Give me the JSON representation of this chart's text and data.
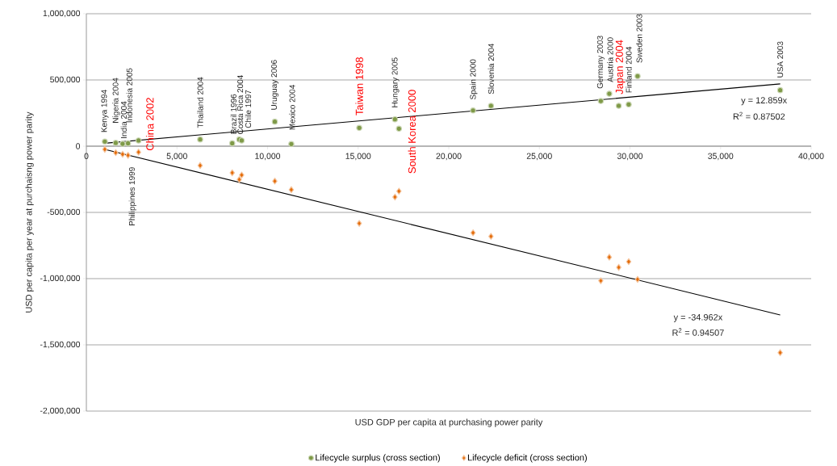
{
  "chart_data": {
    "type": "scatter",
    "xlabel": "USD GDP per capita at purchasing power parity",
    "ylabel": "USD per capita per year at purchaisng power parity",
    "xlim": [
      0,
      40000
    ],
    "xticks": [
      0,
      {
        "value": 5000,
        "label": "5,000"
      },
      {
        "value": 10000,
        "label": "10,000"
      },
      {
        "value": 15000,
        "label": "15,000"
      },
      {
        "value": 20000,
        "label": "20,000"
      },
      {
        "value": 25000,
        "label": "25,000"
      },
      {
        "value": 30000,
        "label": "30,000"
      },
      {
        "value": 35000,
        "label": "35,000"
      },
      {
        "value": 40000,
        "label": "40,000"
      }
    ],
    "ylim": [
      -2000000,
      1000000
    ],
    "yticks": [
      {
        "value": -2000000,
        "label": "-2,000,000"
      },
      {
        "value": -1500000,
        "label": "-1,500,000"
      },
      {
        "value": -1000000,
        "label": "-1,000,000"
      },
      {
        "value": -500000,
        "label": "-500,000"
      },
      0,
      {
        "value": 500000,
        "label": "500,000"
      },
      {
        "value": 1000000,
        "label": "1,000,000"
      }
    ],
    "grid": "y",
    "legend": "bottom",
    "series": [
      {
        "name": "Lifecycle surplus (cross section)",
        "color": "#7f9a48",
        "marker": "circle",
        "x": [
          1020,
          1620,
          2000,
          2280,
          2300,
          2880,
          6280,
          8050,
          8440,
          8570,
          10400,
          11310,
          15060,
          17030,
          17250,
          21340,
          22330,
          28390,
          28860,
          29380,
          29930,
          30420,
          38290
        ],
        "values": [
          35000,
          25000,
          18000,
          null,
          22000,
          43000,
          51000,
          22000,
          51000,
          43000,
          185000,
          16000,
          138000,
          203000,
          132000,
          270000,
          305000,
          341000,
          396000,
          305000,
          315000,
          529000,
          423000
        ]
      },
      {
        "name": "Lifecycle deficit (cross section)",
        "color": "#e46c0a",
        "marker": "diamond",
        "x": [
          1020,
          1620,
          2000,
          2280,
          2300,
          2880,
          6280,
          8050,
          8440,
          8570,
          10400,
          11310,
          15060,
          17030,
          17250,
          21340,
          22330,
          28390,
          28860,
          29380,
          29930,
          30420,
          38290
        ],
        "values": [
          -24000,
          -49000,
          -61000,
          null,
          -69000,
          -45000,
          -146000,
          -201000,
          -252000,
          -218000,
          -264000,
          -329000,
          -583000,
          -384000,
          -340000,
          -654000,
          -681000,
          -1016000,
          -838000,
          -915000,
          -872000,
          -1006000,
          -1559000
        ]
      },
      {
        "type": "line",
        "color": "#000000",
        "marker": "none",
        "x": [
          1020,
          38290
        ],
        "values": [
          22000,
          470000
        ]
      },
      {
        "type": "line",
        "color": "#000000",
        "marker": "none",
        "x": [
          1020,
          38290
        ],
        "values": [
          -24000,
          -1274000
        ]
      }
    ],
    "annotations": [
      {
        "text": "Kenya 1994",
        "x": 1020,
        "y": 35000
      },
      {
        "text": "Nigeria 2004",
        "x": 1620,
        "y": 25000
      },
      {
        "text": "India 2004",
        "x": 2000,
        "y": 18000
      },
      {
        "text": "Indonesia 2005",
        "x": 2280,
        "y": 22000
      },
      {
        "text": "China 2002",
        "x": 2880,
        "y": 43000
      },
      "Philippines 1999",
      {
        "text": "Thailand 2004",
        "x": 6280,
        "y": 51000
      },
      {
        "text": "Brazil 1996",
        "x": 8050,
        "y": 22000
      },
      {
        "text": "Costa Rica 2004",
        "x": 8440,
        "y": 51000
      },
      {
        "text": "Chile 1997",
        "x": 8570,
        "y": 43000
      },
      {
        "text": "Uruguay 2006",
        "x": 10400,
        "y": 185000
      },
      {
        "text": "Mexico 2004",
        "x": 11310,
        "y": 16000
      },
      {
        "text": "Taiwan 1998",
        "x": 15060,
        "y": 138000
      },
      {
        "text": "Hungary 2005",
        "x": 17030,
        "y": 203000
      },
      {
        "text": "South Korea 2000",
        "x": 17250,
        "y": 132000
      },
      {
        "text": "Spain 2000",
        "x": 21340,
        "y": 270000
      },
      {
        "text": "Slovenia 2004",
        "x": 22330,
        "y": 305000
      },
      {
        "text": "Germany 2003",
        "x": 28390,
        "y": 341000
      },
      {
        "text": "Austria 2000",
        "x": 28860,
        "y": 396000
      },
      {
        "text": "Japan 2004",
        "x": 29380,
        "y": 305000
      },
      {
        "text": "Finland 2004",
        "x": 29930,
        "y": 315000
      },
      {
        "text": "Sweden 2003",
        "x": 30420,
        "y": 529000
      },
      {
        "text": "USA 2003",
        "x": 38290,
        "y": 423000
      },
      "y = 12.859x",
      "R$^{2}$ = 0.87502",
      "y = -34.962x",
      "R$^{2}$ = 0.94507"
    ]
  }
}
